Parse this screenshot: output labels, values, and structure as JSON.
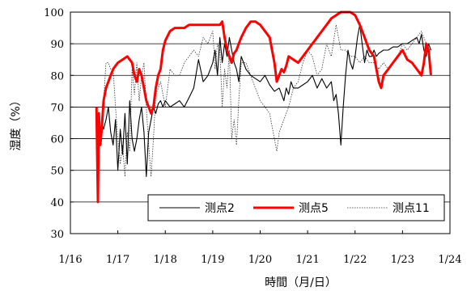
{
  "chart_data": {
    "type": "line",
    "xlabel": "時間（月/日）",
    "ylabel": "湿度（%）",
    "xlim": [
      0,
      8
    ],
    "ylim": [
      30,
      100
    ],
    "x_ticks": [
      {
        "value": 0,
        "label": "1/16"
      },
      {
        "value": 1,
        "label": "1/17"
      },
      {
        "value": 2,
        "label": "1/18"
      },
      {
        "value": 3,
        "label": "1/19"
      },
      {
        "value": 4,
        "label": "1/20"
      },
      {
        "value": 5,
        "label": "1/21"
      },
      {
        "value": 6,
        "label": "1/22"
      },
      {
        "value": 7,
        "label": "1/23"
      },
      {
        "value": 8,
        "label": "1/24"
      }
    ],
    "y_ticks": [
      30,
      40,
      50,
      60,
      70,
      80,
      90,
      100
    ],
    "grid": "horizontal",
    "legend_position": "bottom-right",
    "series": [
      {
        "name": "测点2",
        "color": "#000000",
        "style": "solid",
        "x": [
          0.55,
          0.58,
          0.62,
          0.66,
          0.7,
          0.75,
          0.8,
          0.85,
          0.9,
          0.95,
          1.0,
          1.05,
          1.1,
          1.15,
          1.2,
          1.25,
          1.3,
          1.35,
          1.4,
          1.45,
          1.5,
          1.55,
          1.6,
          1.65,
          1.7,
          1.75,
          1.8,
          1.85,
          1.9,
          1.95,
          2.0,
          2.1,
          2.2,
          2.3,
          2.4,
          2.5,
          2.6,
          2.7,
          2.8,
          2.9,
          3.0,
          3.05,
          3.1,
          3.15,
          3.2,
          3.25,
          3.3,
          3.35,
          3.4,
          3.45,
          3.5,
          3.55,
          3.6,
          3.65,
          3.7,
          3.8,
          3.9,
          4.0,
          4.1,
          4.2,
          4.3,
          4.4,
          4.5,
          4.55,
          4.6,
          4.65,
          4.7,
          4.8,
          4.9,
          5.0,
          5.1,
          5.2,
          5.3,
          5.4,
          5.5,
          5.55,
          5.6,
          5.65,
          5.7,
          5.75,
          5.8,
          5.85,
          5.9,
          5.95,
          6.0,
          6.05,
          6.1,
          6.15,
          6.2,
          6.25,
          6.3,
          6.35,
          6.4,
          6.45,
          6.5,
          6.6,
          6.7,
          6.8,
          6.9,
          7.0,
          7.1,
          7.2,
          7.3,
          7.35,
          7.4,
          7.45,
          7.5,
          7.55,
          7.6
        ],
        "values": [
          60,
          62,
          58,
          65,
          63,
          66,
          70,
          62,
          58,
          66,
          50,
          63,
          55,
          68,
          52,
          72,
          60,
          56,
          60,
          66,
          70,
          62,
          48,
          62,
          66,
          70,
          68,
          71,
          72,
          70,
          72,
          70,
          71,
          72,
          70,
          73,
          76,
          85,
          78,
          80,
          84,
          88,
          80,
          92,
          84,
          90,
          86,
          92,
          88,
          84,
          82,
          78,
          86,
          84,
          82,
          80,
          79,
          78,
          80,
          77,
          75,
          76,
          72,
          76,
          74,
          78,
          76,
          76,
          77,
          78,
          80,
          76,
          79,
          76,
          78,
          72,
          74,
          68,
          58,
          70,
          80,
          88,
          84,
          82,
          86,
          92,
          96,
          90,
          84,
          88,
          86,
          86,
          88,
          86,
          87,
          88,
          88,
          89,
          89,
          90,
          90,
          91,
          92,
          90,
          93,
          88,
          86,
          90,
          88
        ]
      },
      {
        "name": "测点5",
        "color": "#ff0000",
        "style": "solid",
        "x": [
          0.55,
          0.58,
          0.6,
          0.63,
          0.66,
          0.7,
          0.75,
          0.8,
          0.85,
          0.9,
          0.95,
          1.0,
          1.1,
          1.2,
          1.3,
          1.35,
          1.4,
          1.45,
          1.5,
          1.55,
          1.6,
          1.65,
          1.7,
          1.75,
          1.8,
          1.85,
          1.9,
          1.95,
          2.0,
          2.1,
          2.2,
          2.3,
          2.4,
          2.5,
          2.6,
          2.7,
          2.8,
          2.9,
          3.0,
          3.1,
          3.15,
          3.2,
          3.25,
          3.3,
          3.35,
          3.4,
          3.45,
          3.5,
          3.55,
          3.6,
          3.7,
          3.8,
          3.9,
          4.0,
          4.1,
          4.2,
          4.3,
          4.35,
          4.4,
          4.45,
          4.5,
          4.55,
          4.6,
          4.7,
          4.8,
          4.9,
          5.0,
          5.1,
          5.2,
          5.3,
          5.4,
          5.5,
          5.6,
          5.7,
          5.8,
          5.9,
          6.0,
          6.1,
          6.2,
          6.3,
          6.4,
          6.45,
          6.5,
          6.55,
          6.6,
          6.7,
          6.8,
          6.9,
          7.0,
          7.1,
          7.2,
          7.3,
          7.4,
          7.45,
          7.5,
          7.55,
          7.6
        ],
        "values": [
          70,
          40,
          68,
          58,
          63,
          72,
          76,
          78,
          80,
          82,
          83,
          84,
          85,
          86,
          84,
          80,
          78,
          82,
          80,
          76,
          72,
          70,
          68,
          70,
          76,
          80,
          82,
          88,
          91,
          94,
          95,
          95,
          95,
          96,
          96,
          96,
          96,
          96,
          96,
          96,
          96,
          97,
          92,
          88,
          86,
          84,
          87,
          88,
          90,
          92,
          95,
          97,
          97,
          96,
          94,
          92,
          84,
          78,
          80,
          82,
          81,
          83,
          86,
          85,
          84,
          86,
          88,
          90,
          92,
          94,
          96,
          98,
          99,
          100,
          100,
          100,
          99,
          96,
          92,
          88,
          86,
          82,
          78,
          76,
          80,
          82,
          84,
          86,
          88,
          85,
          84,
          82,
          80,
          84,
          90,
          88,
          80
        ]
      },
      {
        "name": "测点11",
        "color": "#333333",
        "style": "dotted",
        "x": [
          0.55,
          0.6,
          0.65,
          0.7,
          0.75,
          0.8,
          0.85,
          0.9,
          0.95,
          1.0,
          1.05,
          1.1,
          1.15,
          1.2,
          1.25,
          1.3,
          1.35,
          1.4,
          1.45,
          1.5,
          1.55,
          1.6,
          1.65,
          1.7,
          1.75,
          1.8,
          1.9,
          2.0,
          2.1,
          2.2,
          2.3,
          2.4,
          2.5,
          2.6,
          2.7,
          2.8,
          2.9,
          3.0,
          3.05,
          3.1,
          3.15,
          3.2,
          3.25,
          3.3,
          3.35,
          3.4,
          3.45,
          3.5,
          3.55,
          3.6,
          3.7,
          3.8,
          3.9,
          4.0,
          4.1,
          4.2,
          4.3,
          4.35,
          4.4,
          4.5,
          4.6,
          4.7,
          4.8,
          4.9,
          5.0,
          5.1,
          5.2,
          5.3,
          5.4,
          5.5,
          5.6,
          5.7,
          5.8,
          5.9,
          6.0,
          6.1,
          6.2,
          6.3,
          6.4,
          6.5,
          6.6,
          6.7,
          6.8,
          6.9,
          7.0,
          7.1,
          7.2,
          7.3,
          7.4,
          7.5,
          7.6
        ],
        "values": [
          58,
          62,
          58,
          72,
          84,
          84,
          82,
          82,
          70,
          60,
          52,
          58,
          48,
          62,
          56,
          82,
          74,
          84,
          72,
          80,
          84,
          70,
          58,
          48,
          60,
          74,
          78,
          70,
          82,
          80,
          80,
          84,
          86,
          88,
          86,
          92,
          90,
          94,
          82,
          90,
          88,
          70,
          82,
          76,
          88,
          60,
          66,
          58,
          72,
          84,
          84,
          80,
          76,
          72,
          70,
          68,
          60,
          56,
          62,
          66,
          70,
          76,
          78,
          84,
          88,
          86,
          80,
          82,
          90,
          86,
          96,
          88,
          88,
          86,
          86,
          84,
          86,
          84,
          84,
          82,
          84,
          82,
          84,
          86,
          90,
          88,
          90,
          92,
          94,
          90,
          82
        ]
      }
    ]
  }
}
